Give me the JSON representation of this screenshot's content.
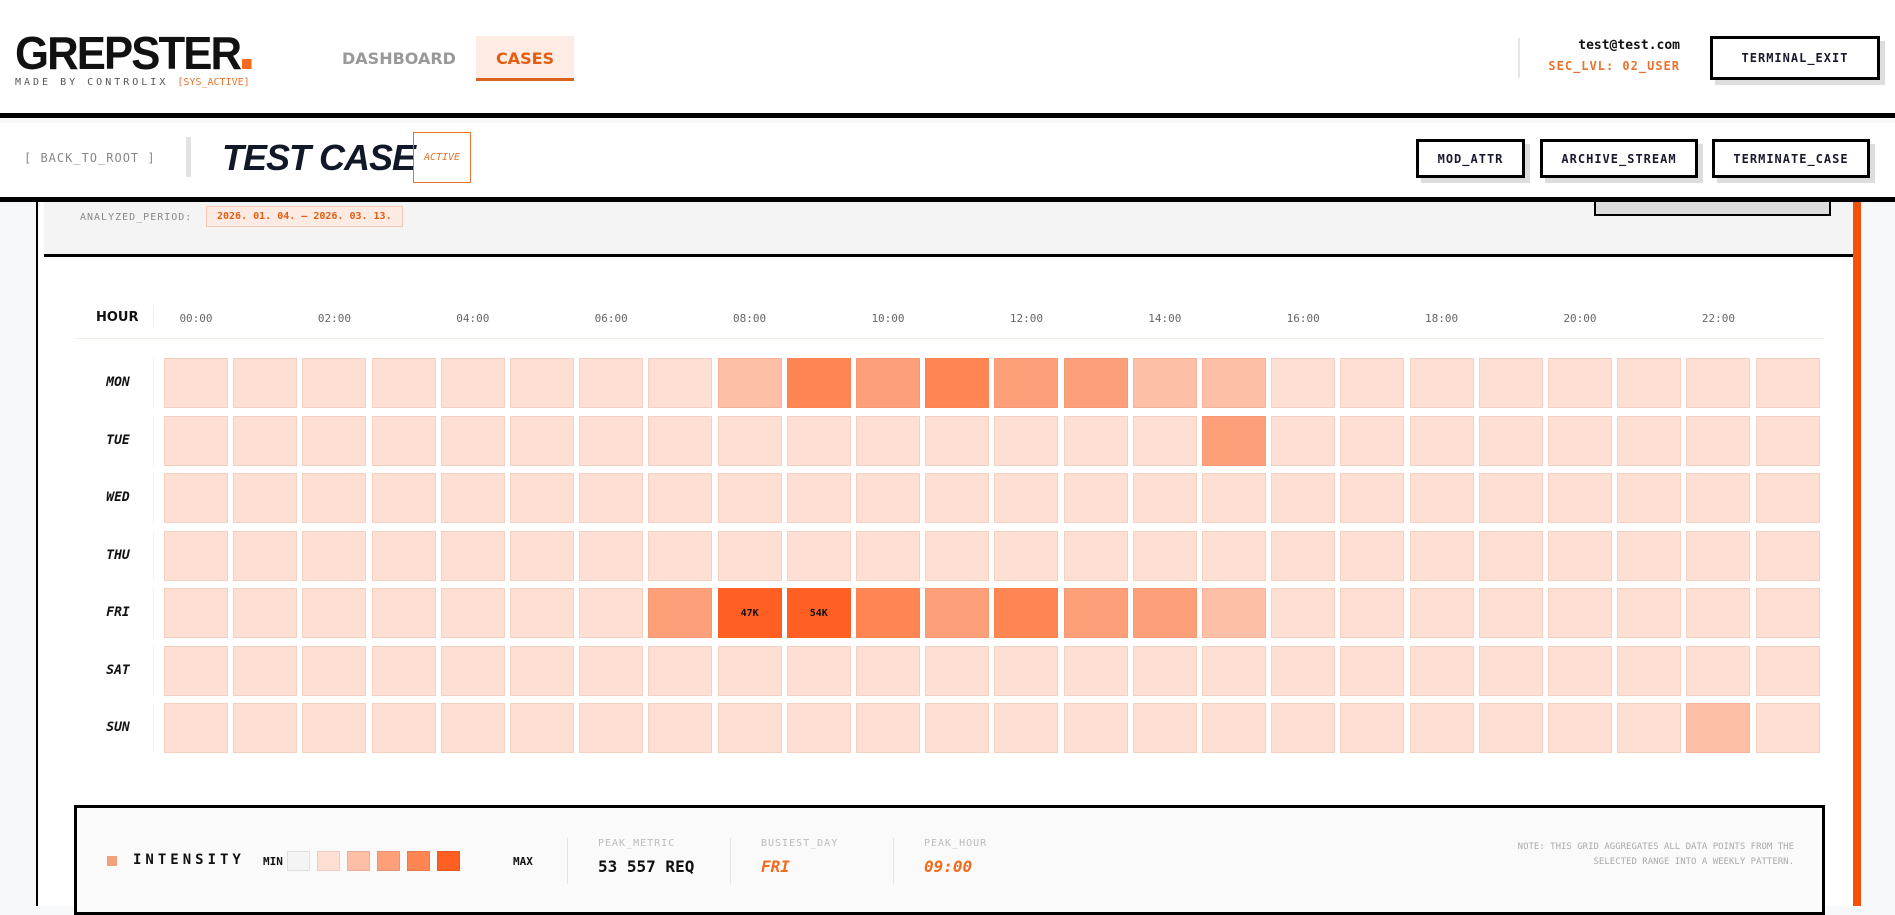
{
  "header": {
    "logo": "GREPSTER",
    "tagline": "MADE BY CONTROLIX",
    "sys_status": "[SYS_ACTIVE]",
    "nav": [
      {
        "label": "DASHBOARD",
        "active": false
      },
      {
        "label": "CASES",
        "active": true
      }
    ],
    "user_email": "test@test.com",
    "sec_level": "SEC_LVL: 02_USER",
    "exit_label": "TERMINAL_EXIT"
  },
  "subheader": {
    "back_label": "[ BACK_TO_ROOT ]",
    "title": "TEST CASE",
    "status_badge": "ACTIVE",
    "actions": [
      "MOD_ATTR",
      "ARCHIVE_STREAM",
      "TERMINATE_CASE"
    ]
  },
  "period": {
    "label": "ANALYZED_PERIOD:",
    "value": "2026. 01. 04. – 2026. 03. 13."
  },
  "chart_data": {
    "type": "heatmap",
    "x_header": "HOUR",
    "x_tick_labels": [
      "00:00",
      "02:00",
      "04:00",
      "06:00",
      "08:00",
      "10:00",
      "12:00",
      "14:00",
      "16:00",
      "18:00",
      "20:00",
      "22:00"
    ],
    "hours": 24,
    "days": [
      "MON",
      "TUE",
      "WED",
      "THU",
      "FRI",
      "SAT",
      "SUN"
    ],
    "levels": [
      [
        1,
        1,
        1,
        1,
        1,
        1,
        1,
        1,
        2,
        4,
        3,
        4,
        3,
        3,
        2,
        2,
        1,
        1,
        1,
        1,
        1,
        1,
        1,
        1
      ],
      [
        1,
        1,
        1,
        1,
        1,
        1,
        1,
        1,
        1,
        1,
        1,
        1,
        1,
        1,
        1,
        3,
        1,
        1,
        1,
        1,
        1,
        1,
        1,
        1
      ],
      [
        1,
        1,
        1,
        1,
        1,
        1,
        1,
        1,
        1,
        1,
        1,
        1,
        1,
        1,
        1,
        1,
        1,
        1,
        1,
        1,
        1,
        1,
        1,
        1
      ],
      [
        1,
        1,
        1,
        1,
        1,
        1,
        1,
        1,
        1,
        1,
        1,
        1,
        1,
        1,
        1,
        1,
        1,
        1,
        1,
        1,
        1,
        1,
        1,
        1
      ],
      [
        1,
        1,
        1,
        1,
        1,
        1,
        1,
        3,
        5,
        5,
        4,
        3,
        4,
        3,
        3,
        2,
        1,
        1,
        1,
        1,
        1,
        1,
        1,
        1
      ],
      [
        1,
        1,
        1,
        1,
        1,
        1,
        1,
        1,
        1,
        1,
        1,
        1,
        1,
        1,
        1,
        1,
        1,
        1,
        1,
        1,
        1,
        1,
        1,
        1
      ],
      [
        1,
        1,
        1,
        1,
        1,
        1,
        1,
        1,
        1,
        1,
        1,
        1,
        1,
        1,
        1,
        1,
        1,
        1,
        1,
        1,
        1,
        1,
        2,
        1
      ]
    ],
    "cell_labels": [
      {
        "day": "FRI",
        "hour": 8,
        "text": "47K"
      },
      {
        "day": "FRI",
        "hour": 9,
        "text": "54K"
      }
    ],
    "scale_colors": [
      "#f4f4f4",
      "#fddfd3",
      "#fdbfa5",
      "#fda07a",
      "#ff8552",
      "#ff5f22"
    ]
  },
  "legend": {
    "title": "INTENSITY",
    "min": "MIN",
    "max": "MAX",
    "stats": [
      {
        "label": "PEAK_METRIC",
        "value": "53 557 REQ"
      },
      {
        "label": "BUSIEST_DAY",
        "value": "FRI"
      },
      {
        "label": "PEAK_HOUR",
        "value": "09:00"
      }
    ],
    "note": "NOTE: THIS GRID AGGREGATES ALL DATA POINTS FROM THE SELECTED RANGE INTO A WEEKLY PATTERN."
  },
  "colors": {
    "accent": "#f26b1d",
    "accent_bar": "#f5500a"
  }
}
